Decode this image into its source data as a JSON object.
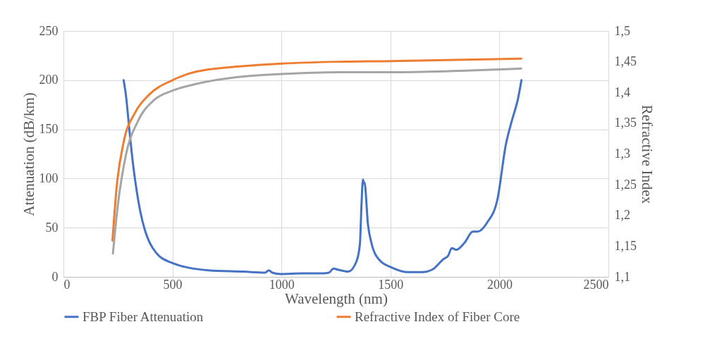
{
  "chart_data": {
    "type": "line",
    "xlabel": "Wavelength (nm)",
    "ylabel": "Attenuation  (dB/km)",
    "y2label": "Refractive Index",
    "xlim": [
      0,
      2500
    ],
    "xticks": [
      0,
      500,
      1000,
      1500,
      2000,
      2500
    ],
    "ylim": [
      0,
      250
    ],
    "yticks": [
      0,
      50,
      100,
      150,
      200,
      250
    ],
    "y2lim": [
      1.1,
      1.5
    ],
    "y2ticks": [
      {
        "value": 1.1,
        "label": "1,1"
      },
      {
        "value": 1.15,
        "label": "1,15"
      },
      {
        "value": 1.2,
        "label": "1,2"
      },
      {
        "value": 1.25,
        "label": "1,25"
      },
      {
        "value": 1.3,
        "label": "1,3"
      },
      {
        "value": 1.35,
        "label": "1,35"
      },
      {
        "value": 1.4,
        "label": "1,4"
      },
      {
        "value": 1.45,
        "label": "1,45"
      },
      {
        "value": 1.5,
        "label": "1,5"
      }
    ],
    "grid": true,
    "legend": "bottom",
    "series": [
      {
        "name": "FBP Fiber Attenuation",
        "color": "#4472c4",
        "x": [
          276,
          287,
          303,
          319,
          335,
          352,
          373,
          395,
          427,
          500,
          568,
          666,
          828,
          925,
          942,
          958,
          996,
          1098,
          1192,
          1218,
          1239,
          1261,
          1306,
          1344,
          1360,
          1367,
          1374,
          1378,
          1381,
          1397,
          1414,
          1451,
          1505,
          1581,
          1646,
          1694,
          1743,
          1765,
          1781,
          1802,
          1840,
          1878,
          1900,
          1943,
          1991,
          2029,
          2056,
          2086,
          2101
        ],
        "values": [
          200,
          184,
          148,
          115,
          89,
          67,
          48,
          35,
          24,
          14,
          9.6,
          6.7,
          5.3,
          4.3,
          6.7,
          4.3,
          2.9,
          3.6,
          3.6,
          4.3,
          8.4,
          7.2,
          5.3,
          15.6,
          33.5,
          72,
          99,
          95,
          96,
          53,
          33.5,
          16.8,
          9.6,
          4.8,
          4.8,
          7.7,
          18,
          21.6,
          29.2,
          27.5,
          34.7,
          46,
          46,
          55,
          79,
          134,
          158,
          182,
          200
        ]
      },
      {
        "name": "Refractive Index of Fiber Core",
        "color": "#ed7d31",
        "axis": "y2",
        "x": [
          225,
          244,
          276,
          330,
          395,
          500,
          611,
          828,
          1001,
          1261,
          1500,
          2100
        ],
        "values": [
          1.159,
          1.246,
          1.319,
          1.368,
          1.397,
          1.42,
          1.434,
          1.443,
          1.447,
          1.45,
          1.451,
          1.455
        ]
      },
      {
        "color": "#a5a5a5",
        "axis": "y2",
        "x": [
          227,
          249,
          287,
          341,
          417,
          500,
          611,
          828,
          1001,
          1261,
          1500,
          2100
        ],
        "values": [
          1.138,
          1.215,
          1.299,
          1.353,
          1.388,
          1.403,
          1.414,
          1.426,
          1.43,
          1.433,
          1.433,
          1.439
        ]
      }
    ]
  }
}
